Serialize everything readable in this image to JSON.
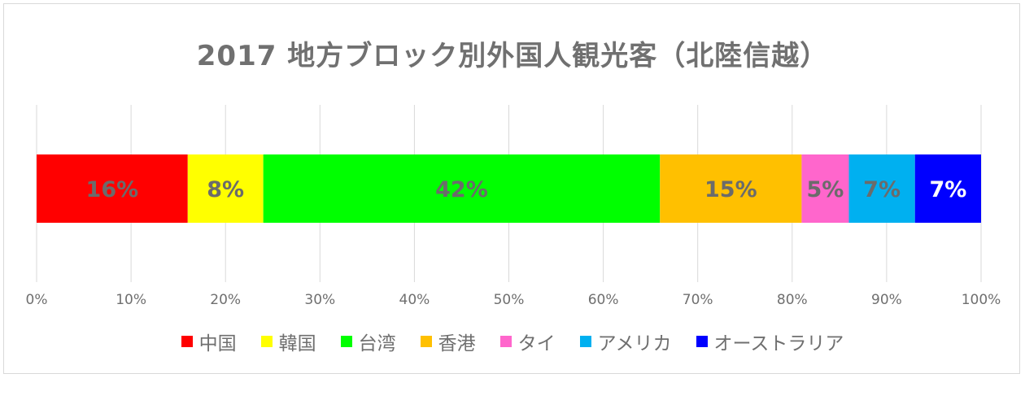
{
  "chart_data": {
    "type": "bar",
    "orientation": "horizontal-stacked-100",
    "title": "2017 地方ブロック別外国人観光客（北陸信越）",
    "categories": [
      "北陸信越"
    ],
    "series": [
      {
        "name": "中国",
        "value": 16,
        "label": "16%",
        "color": "#FF0000",
        "label_color": "#6b6b6b"
      },
      {
        "name": "韓国",
        "value": 8,
        "label": "8%",
        "color": "#FFFF00",
        "label_color": "#6b6b6b"
      },
      {
        "name": "台湾",
        "value": 42,
        "label": "42%",
        "color": "#00FF00",
        "label_color": "#6b6b6b"
      },
      {
        "name": "香港",
        "value": 15,
        "label": "15%",
        "color": "#FFC000",
        "label_color": "#6b6b6b"
      },
      {
        "name": "タイ",
        "value": 5,
        "label": "5%",
        "color": "#FF66CC",
        "label_color": "#6b6b6b"
      },
      {
        "name": "アメリカ",
        "value": 7,
        "label": "7%",
        "color": "#00B0F0",
        "label_color": "#6b6b6b"
      },
      {
        "name": "オーストラリア",
        "value": 7,
        "label": "7%",
        "color": "#0000FF",
        "label_color": "#FFFFFF"
      }
    ],
    "xlim": [
      0,
      100
    ],
    "xticks": [
      "0%",
      "10%",
      "20%",
      "30%",
      "40%",
      "50%",
      "60%",
      "70%",
      "80%",
      "90%",
      "100%"
    ],
    "grid": true,
    "legend_position": "bottom"
  }
}
